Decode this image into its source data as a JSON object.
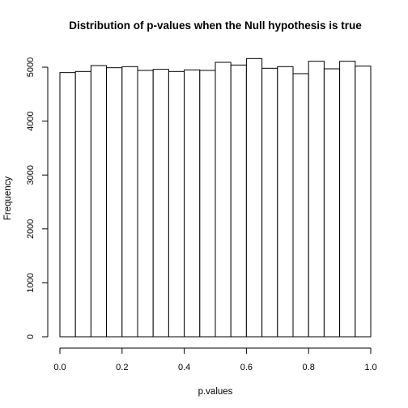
{
  "chart_data": {
    "type": "bar",
    "title": "Distribution of p-values when the Null hypothesis is true",
    "xlabel": "p.values",
    "ylabel": "Frequency",
    "bin_edges": [
      0.0,
      0.05,
      0.1,
      0.15,
      0.2,
      0.25,
      0.3,
      0.35,
      0.4,
      0.45,
      0.5,
      0.55,
      0.6,
      0.65,
      0.7,
      0.75,
      0.8,
      0.85,
      0.9,
      0.95,
      1.0
    ],
    "values": [
      4900,
      4920,
      5030,
      4990,
      5010,
      4940,
      4960,
      4920,
      4950,
      4940,
      5090,
      5040,
      5160,
      4980,
      5010,
      4880,
      5110,
      4970,
      5110,
      5020
    ],
    "xlim": [
      0,
      1
    ],
    "ylim": [
      0,
      5200
    ],
    "x_ticks": [
      0.0,
      0.2,
      0.4,
      0.6,
      0.8,
      1.0
    ],
    "x_tick_labels": [
      "0.0",
      "0.2",
      "0.4",
      "0.6",
      "0.8",
      "1.0"
    ],
    "y_ticks": [
      0,
      1000,
      2000,
      3000,
      4000,
      5000
    ],
    "y_tick_labels": [
      "0",
      "1000",
      "2000",
      "3000",
      "4000",
      "5000"
    ],
    "bar_fill": "#ffffff",
    "bar_stroke": "#000000",
    "grid": false,
    "legend": "none"
  }
}
